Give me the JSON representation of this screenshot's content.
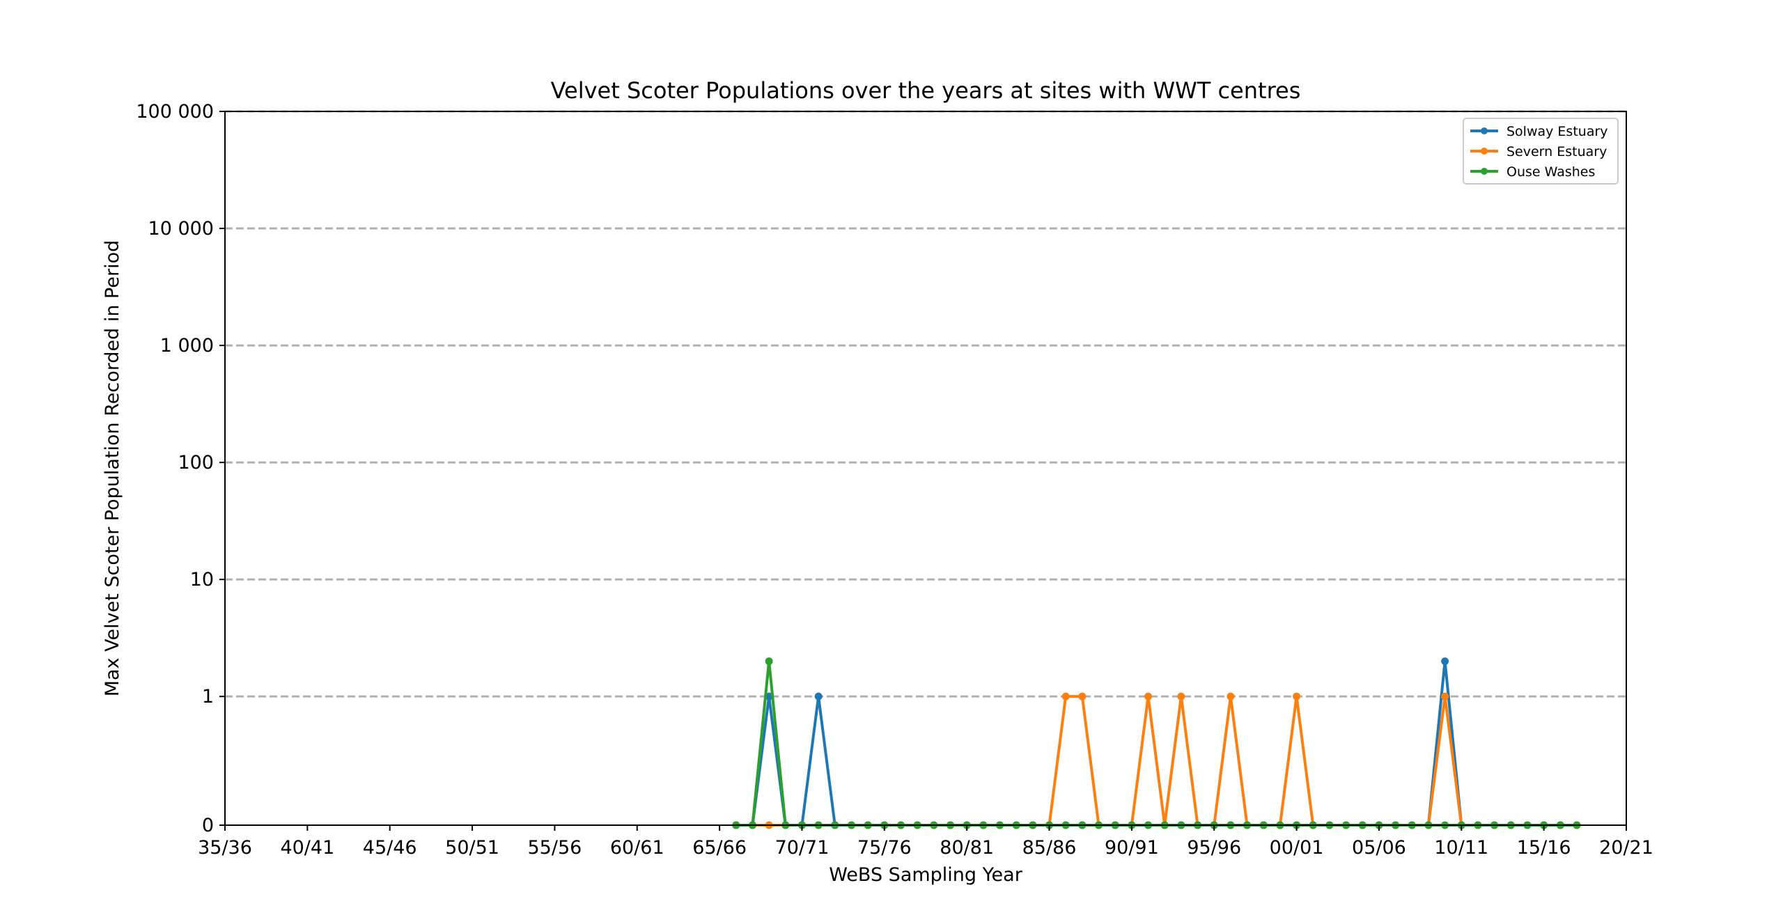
{
  "chart_data": {
    "type": "line",
    "title": "Velvet Scoter Populations over the years at sites with WWT centres",
    "xlabel": "WeBS Sampling Year",
    "ylabel": "Max Velvet Scoter Population Recorded in Period",
    "y_scale": "symlog",
    "y_ticks": [
      0,
      1,
      10,
      100,
      1000,
      10000,
      100000
    ],
    "y_tick_labels": [
      "0",
      "1",
      "10",
      "100",
      "1 000",
      "10 000",
      "100 000"
    ],
    "ylim": [
      0,
      100000
    ],
    "x_ticks": [
      "35/36",
      "40/41",
      "45/46",
      "50/51",
      "55/56",
      "60/61",
      "65/66",
      "70/71",
      "75/76",
      "80/81",
      "85/86",
      "90/91",
      "95/96",
      "00/01",
      "05/06",
      "10/11",
      "15/16",
      "20/21"
    ],
    "x_range": [
      "35/36",
      "20/21"
    ],
    "grid": "horizontal dashed",
    "legend_position": "top-right",
    "series": [
      {
        "name": "Solway Estuary",
        "color": "#1f77b4",
        "points": [
          [
            "66/67",
            0
          ],
          [
            "67/68",
            0
          ],
          [
            "68/69",
            1
          ],
          [
            "69/70",
            0
          ],
          [
            "70/71",
            0
          ],
          [
            "71/72",
            1
          ],
          [
            "72/73",
            0
          ],
          [
            "73/74",
            0
          ],
          [
            "74/75",
            0
          ],
          [
            "75/76",
            0
          ],
          [
            "76/77",
            0
          ],
          [
            "77/78",
            0
          ],
          [
            "78/79",
            0
          ],
          [
            "79/80",
            0
          ],
          [
            "80/81",
            0
          ],
          [
            "81/82",
            0
          ],
          [
            "82/83",
            0
          ],
          [
            "83/84",
            0
          ],
          [
            "84/85",
            0
          ],
          [
            "85/86",
            0
          ],
          [
            "86/87",
            0
          ],
          [
            "87/88",
            0
          ],
          [
            "88/89",
            0
          ],
          [
            "89/90",
            0
          ],
          [
            "90/91",
            0
          ],
          [
            "91/92",
            0
          ],
          [
            "92/93",
            0
          ],
          [
            "93/94",
            0
          ],
          [
            "94/95",
            0
          ],
          [
            "95/96",
            0
          ],
          [
            "96/97",
            0
          ],
          [
            "97/98",
            0
          ],
          [
            "98/99",
            0
          ],
          [
            "99/00",
            0
          ],
          [
            "00/01",
            0
          ],
          [
            "01/02",
            0
          ],
          [
            "02/03",
            0
          ],
          [
            "03/04",
            0
          ],
          [
            "04/05",
            0
          ],
          [
            "05/06",
            0
          ],
          [
            "06/07",
            0
          ],
          [
            "07/08",
            0
          ],
          [
            "08/09",
            0
          ],
          [
            "09/10",
            2
          ],
          [
            "10/11",
            0
          ],
          [
            "11/12",
            0
          ],
          [
            "12/13",
            0
          ],
          [
            "13/14",
            0
          ],
          [
            "14/15",
            0
          ],
          [
            "15/16",
            0
          ],
          [
            "16/17",
            0
          ],
          [
            "17/18",
            0
          ]
        ]
      },
      {
        "name": "Severn Estuary",
        "color": "#ff7f0e",
        "points": [
          [
            "66/67",
            0
          ],
          [
            "67/68",
            0
          ],
          [
            "68/69",
            0
          ],
          [
            "69/70",
            0
          ],
          [
            "70/71",
            0
          ],
          [
            "71/72",
            0
          ],
          [
            "72/73",
            0
          ],
          [
            "73/74",
            0
          ],
          [
            "74/75",
            0
          ],
          [
            "75/76",
            0
          ],
          [
            "76/77",
            0
          ],
          [
            "77/78",
            0
          ],
          [
            "78/79",
            0
          ],
          [
            "79/80",
            0
          ],
          [
            "80/81",
            0
          ],
          [
            "81/82",
            0
          ],
          [
            "82/83",
            0
          ],
          [
            "83/84",
            0
          ],
          [
            "84/85",
            0
          ],
          [
            "85/86",
            0
          ],
          [
            "86/87",
            1
          ],
          [
            "87/88",
            1
          ],
          [
            "88/89",
            0
          ],
          [
            "89/90",
            0
          ],
          [
            "90/91",
            0
          ],
          [
            "91/92",
            1
          ],
          [
            "92/93",
            0
          ],
          [
            "93/94",
            1
          ],
          [
            "94/95",
            0
          ],
          [
            "95/96",
            0
          ],
          [
            "96/97",
            1
          ],
          [
            "97/98",
            0
          ],
          [
            "98/99",
            0
          ],
          [
            "99/00",
            0
          ],
          [
            "00/01",
            1
          ],
          [
            "01/02",
            0
          ],
          [
            "02/03",
            0
          ],
          [
            "03/04",
            0
          ],
          [
            "04/05",
            0
          ],
          [
            "05/06",
            0
          ],
          [
            "06/07",
            0
          ],
          [
            "07/08",
            0
          ],
          [
            "08/09",
            0
          ],
          [
            "09/10",
            1
          ],
          [
            "10/11",
            0
          ],
          [
            "11/12",
            0
          ],
          [
            "12/13",
            0
          ],
          [
            "13/14",
            0
          ],
          [
            "14/15",
            0
          ],
          [
            "15/16",
            0
          ],
          [
            "16/17",
            0
          ],
          [
            "17/18",
            0
          ]
        ]
      },
      {
        "name": "Ouse Washes",
        "color": "#2ca02c",
        "points": [
          [
            "66/67",
            0
          ],
          [
            "67/68",
            0
          ],
          [
            "68/69",
            2
          ],
          [
            "69/70",
            0
          ],
          [
            "70/71",
            0
          ],
          [
            "71/72",
            0
          ],
          [
            "72/73",
            0
          ],
          [
            "73/74",
            0
          ],
          [
            "74/75",
            0
          ],
          [
            "75/76",
            0
          ],
          [
            "76/77",
            0
          ],
          [
            "77/78",
            0
          ],
          [
            "78/79",
            0
          ],
          [
            "79/80",
            0
          ],
          [
            "80/81",
            0
          ],
          [
            "81/82",
            0
          ],
          [
            "82/83",
            0
          ],
          [
            "83/84",
            0
          ],
          [
            "84/85",
            0
          ],
          [
            "85/86",
            0
          ],
          [
            "86/87",
            0
          ],
          [
            "87/88",
            0
          ],
          [
            "88/89",
            0
          ],
          [
            "89/90",
            0
          ],
          [
            "90/91",
            0
          ],
          [
            "91/92",
            0
          ],
          [
            "92/93",
            0
          ],
          [
            "93/94",
            0
          ],
          [
            "94/95",
            0
          ],
          [
            "95/96",
            0
          ],
          [
            "96/97",
            0
          ],
          [
            "97/98",
            0
          ],
          [
            "98/99",
            0
          ],
          [
            "99/00",
            0
          ],
          [
            "00/01",
            0
          ],
          [
            "01/02",
            0
          ],
          [
            "02/03",
            0
          ],
          [
            "03/04",
            0
          ],
          [
            "04/05",
            0
          ],
          [
            "05/06",
            0
          ],
          [
            "06/07",
            0
          ],
          [
            "07/08",
            0
          ],
          [
            "08/09",
            0
          ],
          [
            "09/10",
            0
          ],
          [
            "10/11",
            0
          ],
          [
            "11/12",
            0
          ],
          [
            "12/13",
            0
          ],
          [
            "13/14",
            0
          ],
          [
            "14/15",
            0
          ],
          [
            "15/16",
            0
          ],
          [
            "16/17",
            0
          ],
          [
            "17/18",
            0
          ]
        ]
      }
    ]
  }
}
